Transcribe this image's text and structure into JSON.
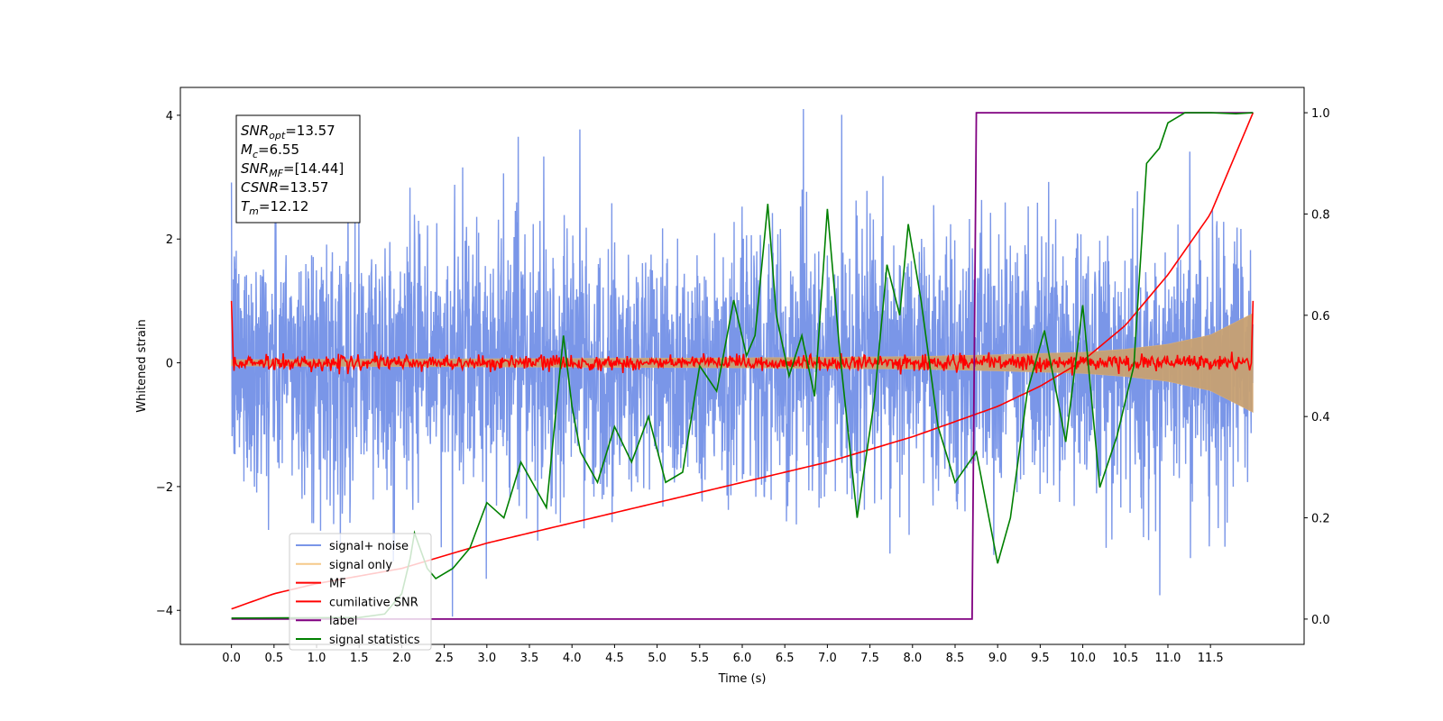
{
  "chart_data": {
    "type": "line",
    "xlabel": "Time (s)",
    "ylabel": "Whitened strain",
    "xlim": [
      -0.6,
      12.6
    ],
    "ylim": [
      -4.55,
      4.45
    ],
    "ylim_right": [
      -0.05,
      1.05
    ],
    "xticks": [
      "0.0",
      "0.5",
      "1.0",
      "1.5",
      "2.0",
      "2.5",
      "3.0",
      "3.5",
      "4.0",
      "4.5",
      "5.0",
      "5.5",
      "6.0",
      "6.5",
      "7.0",
      "7.5",
      "8.0",
      "8.5",
      "9.0",
      "9.5",
      "10.0",
      "10.5",
      "11.0",
      "11.5"
    ],
    "yticks_left": [
      "4",
      "2",
      "0",
      "−2",
      "−4"
    ],
    "yticks_right": [
      "1.0",
      "0.8",
      "0.6",
      "0.4",
      "0.2",
      "0.0"
    ],
    "legend_position": "lower-left",
    "annotation": {
      "lines": [
        {
          "base": "SNR",
          "sub": "opt",
          "value": "=13.57"
        },
        {
          "base": "M",
          "sub": "c",
          "value": "=6.55"
        },
        {
          "base": "SNR",
          "sub": "MF",
          "value": "=[14.44]"
        },
        {
          "base": "CSNR",
          "sub": "",
          "value": "=13.57"
        },
        {
          "base": "T",
          "sub": "m",
          "value": "=12.12"
        }
      ]
    },
    "series": [
      {
        "name": "signal+ noise",
        "axis": "left",
        "color": "#7a96e8",
        "description_amplitude": 1.3,
        "range": [
          0.0,
          12.0
        ]
      },
      {
        "name": "signal only",
        "axis": "left",
        "color": "#f6c98a",
        "envelope": {
          "x": [
            0,
            2,
            4,
            6,
            8,
            9,
            10,
            10.5,
            11,
            11.5,
            12
          ],
          "amp": [
            0.05,
            0.06,
            0.07,
            0.08,
            0.1,
            0.13,
            0.17,
            0.22,
            0.3,
            0.45,
            0.8
          ]
        }
      },
      {
        "name": "MF",
        "axis": "left",
        "color": "#ff0000",
        "start": 1.0,
        "end": 1.0,
        "noise_amp": 0.06
      },
      {
        "name": "cumilative SNR",
        "axis": "right",
        "color": "#ff0000",
        "x": [
          0.0,
          0.5,
          1.0,
          2.0,
          3.0,
          4.0,
          5.0,
          6.0,
          7.0,
          8.0,
          8.5,
          9.0,
          9.5,
          10.0,
          10.5,
          11.0,
          11.5,
          12.0
        ],
        "y": [
          0.02,
          0.05,
          0.07,
          0.1,
          0.15,
          0.19,
          0.23,
          0.27,
          0.31,
          0.36,
          0.39,
          0.42,
          0.46,
          0.51,
          0.58,
          0.68,
          0.8,
          1.0
        ]
      },
      {
        "name": "label",
        "axis": "right",
        "color": "#800080",
        "x": [
          0.0,
          8.7,
          8.75,
          12.0
        ],
        "y": [
          0.0,
          0.0,
          1.0,
          1.0
        ]
      },
      {
        "name": "signal statistics",
        "axis": "right",
        "color": "#008000",
        "x": [
          0.0,
          1.5,
          1.8,
          2.0,
          2.1,
          2.15,
          2.3,
          2.4,
          2.6,
          2.8,
          3.0,
          3.2,
          3.4,
          3.5,
          3.7,
          3.9,
          4.0,
          4.1,
          4.3,
          4.5,
          4.7,
          4.9,
          5.1,
          5.3,
          5.5,
          5.7,
          5.9,
          6.05,
          6.15,
          6.3,
          6.4,
          6.55,
          6.7,
          6.85,
          7.0,
          7.15,
          7.35,
          7.55,
          7.7,
          7.85,
          7.95,
          8.1,
          8.3,
          8.5,
          8.75,
          9.0,
          9.15,
          9.35,
          9.55,
          9.8,
          10.0,
          10.2,
          10.4,
          10.6,
          10.75,
          10.9,
          11.0,
          11.2,
          11.5,
          11.8,
          12.0
        ],
        "y": [
          0.002,
          0.003,
          0.01,
          0.05,
          0.12,
          0.17,
          0.1,
          0.08,
          0.1,
          0.14,
          0.23,
          0.2,
          0.31,
          0.28,
          0.22,
          0.56,
          0.42,
          0.33,
          0.27,
          0.38,
          0.31,
          0.4,
          0.27,
          0.29,
          0.5,
          0.45,
          0.63,
          0.52,
          0.56,
          0.82,
          0.6,
          0.48,
          0.56,
          0.44,
          0.81,
          0.52,
          0.2,
          0.43,
          0.7,
          0.6,
          0.78,
          0.63,
          0.38,
          0.27,
          0.33,
          0.11,
          0.2,
          0.45,
          0.57,
          0.35,
          0.62,
          0.26,
          0.36,
          0.5,
          0.9,
          0.93,
          0.98,
          1.0,
          1.0,
          0.998,
          1.0
        ]
      }
    ]
  }
}
